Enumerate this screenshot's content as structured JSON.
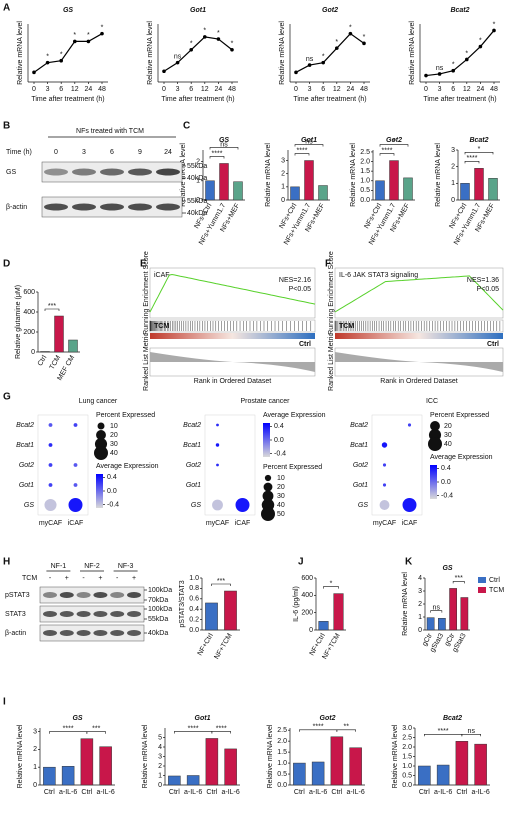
{
  "panel_labels": [
    "A",
    "B",
    "C",
    "D",
    "E",
    "F",
    "G",
    "H",
    "I",
    "J",
    "K"
  ],
  "chart_data": [
    {
      "type": "line",
      "title": "GS",
      "categories": [
        0,
        3,
        6,
        12,
        24,
        48
      ],
      "values": [
        1.0,
        1.5,
        1.6,
        2.6,
        2.6,
        3.0
      ],
      "sig": [
        null,
        "*",
        "*",
        "*",
        "*",
        "*"
      ],
      "color": "#000000",
      "ylim": [
        0.5,
        3.5
      ],
      "xlabel": "Time after treatment (h)",
      "ylabel": "Relative mRNA level"
    },
    {
      "type": "line",
      "title": "Got1",
      "categories": [
        0,
        3,
        6,
        12,
        24,
        48
      ],
      "values": [
        1.0,
        1.4,
        2.0,
        2.6,
        2.5,
        2.0
      ],
      "sig": [
        null,
        "ns",
        "*",
        "*",
        "*",
        "*"
      ],
      "color": "#000000",
      "ylim": [
        0.5,
        3.2
      ],
      "xlabel": "Time after treatment (h)",
      "ylabel": "Relative mRNA level"
    },
    {
      "type": "line",
      "title": "Got2",
      "categories": [
        0,
        3,
        6,
        12,
        24,
        48
      ],
      "values": [
        1.0,
        1.3,
        1.4,
        2.0,
        2.6,
        2.2
      ],
      "sig": [
        null,
        "ns",
        "*",
        "*",
        "*",
        "*"
      ],
      "color": "#000000",
      "ylim": [
        0.6,
        3.0
      ],
      "xlabel": "Time after treatment (h)",
      "ylabel": "Relative mRNA level"
    },
    {
      "type": "line",
      "title": "Bcat2",
      "categories": [
        0,
        3,
        6,
        12,
        24,
        48
      ],
      "values": [
        1.0,
        1.1,
        1.3,
        2.0,
        2.8,
        3.8
      ],
      "sig": [
        null,
        "ns",
        "*",
        "*",
        "*",
        "*"
      ],
      "color": "#000000",
      "ylim": [
        0.6,
        4.2
      ],
      "xlabel": "Time after treatment (h)",
      "ylabel": "Relative mRNA level"
    },
    {
      "type": "bar",
      "title": "GS",
      "categories": [
        "NFs+Ctrl",
        "NFs+Yumm1.7",
        "NFs+MEF"
      ],
      "values": [
        1.0,
        1.9,
        0.95
      ],
      "colors": [
        "#3a6fc4",
        "#c8174a",
        "#5aa48a"
      ],
      "ylim": [
        0,
        2.6
      ],
      "yticks": [
        0,
        1,
        2
      ],
      "ylabel": "Relative mRNA level",
      "sig": [
        {
          "from": 0,
          "to": 1,
          "label": "****"
        },
        {
          "from": 0,
          "to": 2,
          "label": "ns"
        }
      ]
    },
    {
      "type": "bar",
      "title": "Got1",
      "categories": [
        "NFs+Ctrl",
        "NFs+Yumm1.7",
        "NFs+MEF"
      ],
      "values": [
        1.0,
        3.0,
        1.1
      ],
      "colors": [
        "#3a6fc4",
        "#c8174a",
        "#5aa48a"
      ],
      "ylim": [
        0,
        3.8
      ],
      "yticks": [
        0,
        1,
        2,
        3
      ],
      "ylabel": "Relative mRNA level",
      "sig": [
        {
          "from": 0,
          "to": 1,
          "label": "****"
        },
        {
          "from": 0,
          "to": 2,
          "label": "ns"
        }
      ]
    },
    {
      "type": "bar",
      "title": "Got2",
      "categories": [
        "NFs+Ctrl",
        "NFs+Yumm1.7",
        "NFs+MEF"
      ],
      "values": [
        1.0,
        2.05,
        1.15
      ],
      "colors": [
        "#3a6fc4",
        "#c8174a",
        "#5aa48a"
      ],
      "ylim": [
        0,
        2.6
      ],
      "yticks": [
        {
          "value": 0,
          "label": "0.0"
        },
        0.5,
        {
          "value": 1,
          "label": "1.0"
        },
        1.5,
        {
          "value": 2,
          "label": "2.0"
        },
        2.5
      ],
      "ylabel": "Relative mRNA level",
      "sig": [
        {
          "from": 0,
          "to": 1,
          "label": "****"
        },
        {
          "from": 0,
          "to": 2,
          "label": "*"
        }
      ]
    },
    {
      "type": "bar",
      "title": "Bcat2",
      "categories": [
        "NFs+Ctrl",
        "NFs+Yumm1.7",
        "NFs+MEF"
      ],
      "values": [
        1.0,
        1.9,
        1.3
      ],
      "colors": [
        "#3a6fc4",
        "#c8174a",
        "#5aa48a"
      ],
      "ylim": [
        0,
        3
      ],
      "yticks": [
        0,
        1,
        2,
        3
      ],
      "ylabel": "Relative mRNA level",
      "sig": [
        {
          "from": 0,
          "to": 1,
          "label": "****"
        },
        {
          "from": 0,
          "to": 2,
          "label": "*"
        }
      ]
    },
    {
      "type": "bar",
      "categories": [
        "Ctrl",
        "TCM",
        "MEF CM"
      ],
      "values": [
        5,
        360,
        120
      ],
      "colors": [
        "#ffffff",
        "#c8174a",
        "#5aa48a"
      ],
      "ylim": [
        0,
        600
      ],
      "yticks": [
        0,
        200,
        400,
        600
      ],
      "ylabel": "Relative glutamine (μM)",
      "sig": [
        {
          "from": 0,
          "to": 1,
          "label": "***"
        }
      ]
    },
    {
      "type": "bar",
      "categories": [
        "NF+Ctrl",
        "NF+TCM"
      ],
      "values": [
        0.52,
        0.75
      ],
      "colors": [
        "#3a6fc4",
        "#c8174a"
      ],
      "ylim": [
        0,
        1
      ],
      "yticks": [
        {
          "value": 0,
          "label": "0.0"
        },
        0.2,
        0.4,
        0.6,
        0.8,
        {
          "value": 1,
          "label": "1.0"
        }
      ],
      "ylabel": "pSTAT3/STAT3",
      "sig": [
        {
          "from": 0,
          "to": 1,
          "label": "***"
        }
      ]
    },
    {
      "type": "bar",
      "categories": [
        "NF+Ctrl",
        "NF+TCM"
      ],
      "values": [
        100,
        420
      ],
      "colors": [
        "#3a6fc4",
        "#c8174a"
      ],
      "ylim": [
        0,
        600
      ],
      "yticks": [
        0,
        200,
        400,
        600
      ],
      "ylabel": "IL-6 (pg/ml)",
      "sig": [
        {
          "from": 0,
          "to": 1,
          "label": "*"
        }
      ]
    },
    {
      "type": "bar",
      "title": "GS",
      "categories": [
        "gCtr",
        "gStat3",
        "gCtr",
        "gStat3"
      ],
      "series": [
        {
          "name": "Ctrl",
          "color": "#3a6fc4",
          "values": [
            0.95,
            0.9,
            null,
            null
          ]
        },
        {
          "name": "TCM",
          "color": "#c8174a",
          "values": [
            null,
            null,
            3.2,
            2.5
          ]
        }
      ],
      "ylim": [
        0,
        4
      ],
      "yticks": [
        0,
        1,
        2,
        3,
        4
      ],
      "ylabel": "Relative mRNA level",
      "sig": [
        {
          "from": 0,
          "to": 1,
          "label": "ns"
        },
        {
          "from": 2,
          "to": 3,
          "label": "***"
        }
      ],
      "legend": "right"
    },
    {
      "type": "bar",
      "title": "GS",
      "categories": [
        "Ctrl",
        "a-IL-6",
        "Ctrl",
        "a-IL-6"
      ],
      "values": [
        1.0,
        1.05,
        2.6,
        2.15
      ],
      "colors": [
        "#3a6fc4",
        "#3a6fc4",
        "#c8174a",
        "#c8174a"
      ],
      "ylim": [
        0,
        3.2
      ],
      "yticks": [
        0,
        1,
        2,
        3
      ],
      "ylabel": "Relative mRNA level",
      "sig": [
        {
          "from": 0,
          "to": 2,
          "label": "****"
        },
        {
          "from": 2,
          "to": 3,
          "label": "***"
        }
      ]
    },
    {
      "type": "bar",
      "title": "Got1",
      "categories": [
        "Ctrl",
        "a-IL-6",
        "Ctrl",
        "a-IL-6"
      ],
      "values": [
        0.95,
        1.0,
        4.9,
        3.8
      ],
      "colors": [
        "#3a6fc4",
        "#3a6fc4",
        "#c8174a",
        "#c8174a"
      ],
      "ylim": [
        0,
        6
      ],
      "yticks": [
        0,
        1,
        2,
        3,
        4,
        5
      ],
      "ylabel": "Relative mRNA level",
      "sig": [
        {
          "from": 0,
          "to": 2,
          "label": "****"
        },
        {
          "from": 2,
          "to": 3,
          "label": "****"
        }
      ]
    },
    {
      "type": "bar",
      "title": "Got2",
      "categories": [
        "Ctrl",
        "a-IL-6",
        "Ctrl",
        "a-IL-6"
      ],
      "values": [
        1.0,
        1.05,
        2.2,
        1.7
      ],
      "colors": [
        "#3a6fc4",
        "#3a6fc4",
        "#c8174a",
        "#c8174a"
      ],
      "ylim": [
        0,
        2.6
      ],
      "yticks": [
        {
          "value": 0,
          "label": "0.0"
        },
        0.5,
        {
          "value": 1,
          "label": "1.0"
        },
        1.5,
        {
          "value": 2,
          "label": "2.0"
        },
        2.5
      ],
      "ylabel": "Relative mRNA level",
      "sig": [
        {
          "from": 0,
          "to": 2,
          "label": "****"
        },
        {
          "from": 2,
          "to": 3,
          "label": "**"
        }
      ]
    },
    {
      "type": "bar",
      "title": "Bcat2",
      "categories": [
        "Ctrl",
        "a-IL-6",
        "Ctrl",
        "a-IL-6"
      ],
      "values": [
        1.0,
        1.05,
        2.3,
        2.15
      ],
      "colors": [
        "#3a6fc4",
        "#3a6fc4",
        "#c8174a",
        "#c8174a"
      ],
      "ylim": [
        0,
        3
      ],
      "yticks": [
        {
          "value": 0,
          "label": "0.0"
        },
        0.5,
        {
          "value": 1,
          "label": "1.0"
        },
        1.5,
        {
          "value": 2,
          "label": "2.0"
        },
        2.5,
        {
          "value": 3,
          "label": "3.0"
        }
      ],
      "ylabel": "Relative mRNA level",
      "sig": [
        {
          "from": 0,
          "to": 2,
          "label": "****"
        },
        {
          "from": 2,
          "to": 3,
          "label": "ns"
        }
      ]
    },
    {
      "type": "dot",
      "title": "Lung cancer",
      "categories": [
        "myCAF",
        "iCAF"
      ],
      "genes": [
        "Bcat2",
        "Bcat1",
        "Got2",
        "Got1",
        "GS"
      ],
      "percent": [
        [
          3,
          3
        ],
        [
          3,
          null
        ],
        [
          3,
          3
        ],
        [
          3,
          3
        ],
        [
          30,
          40
        ]
      ],
      "average": [
        [
          0.1,
          0.2
        ],
        [
          0.3,
          null
        ],
        [
          0.2,
          0.1
        ],
        [
          0.2,
          0.1
        ],
        [
          -0.4,
          0.4
        ]
      ],
      "size_title": "Percent Expressed",
      "size_ticks": [
        10,
        20,
        30,
        40
      ],
      "color_title": "Average Expression",
      "color_ticks": [
        0.4,
        {
          "value": 0,
          "label": "0.0"
        },
        -0.4
      ],
      "clim": [
        -0.5,
        0.5
      ]
    },
    {
      "type": "dot",
      "title": "Prostate cancer",
      "categories": [
        "myCAF",
        "iCAF"
      ],
      "genes": [
        "Bcat2",
        "Bcat1",
        "Got2",
        "Got1",
        "GS"
      ],
      "percent": [
        [
          2,
          null
        ],
        [
          3,
          null
        ],
        [
          2,
          null
        ],
        [
          null,
          null
        ],
        [
          30,
          50
        ]
      ],
      "average": [
        [
          0.3,
          null
        ],
        [
          0.4,
          null
        ],
        [
          0.3,
          null
        ],
        [
          null,
          null
        ],
        [
          -0.4,
          0.4
        ]
      ],
      "size_title": "Percent Expressed",
      "size_ticks": [
        10,
        20,
        30,
        40,
        50
      ],
      "color_title": "Average Expression",
      "color_ticks": [
        0.4,
        {
          "value": 0,
          "label": "0.0"
        },
        -0.4
      ],
      "clim": [
        -0.5,
        0.5
      ]
    },
    {
      "type": "dot",
      "title": "ICC",
      "categories": [
        "myCAF",
        "iCAF"
      ],
      "genes": [
        "Bcat2",
        "Bcat1",
        "Got2",
        "Got1",
        "GS"
      ],
      "percent": [
        [
          null,
          2
        ],
        [
          6,
          null
        ],
        [
          2,
          null
        ],
        [
          2,
          null
        ],
        [
          20,
          40
        ]
      ],
      "average": [
        [
          null,
          0.2
        ],
        [
          0.4,
          null
        ],
        [
          0.2,
          null
        ],
        [
          0.2,
          null
        ],
        [
          -0.4,
          0.4
        ]
      ],
      "size_title": "Percent Expressed",
      "size_ticks": [
        20,
        30,
        40
      ],
      "color_title": "Average Expression",
      "color_ticks": [
        0.4,
        {
          "value": 0,
          "label": "0.0"
        },
        -0.4
      ],
      "clim": [
        -0.5,
        0.5
      ]
    }
  ],
  "gsea": [
    {
      "title": "iCAF",
      "nes": "NES=2.16",
      "p": "P<0.05",
      "high": "TCM",
      "low": "Ctrl",
      "ylabel_top": "Running Enrichment Score",
      "ylabel_bottom": "Ranked List Metric",
      "xlabel": "Rank in Ordered Dataset"
    },
    {
      "title": "IL-6 JAK STAT3 signaling",
      "nes": "NES=1.36",
      "p": "P<0.05",
      "high": "TCM",
      "low": "Ctrl",
      "ylabel_top": "Running Enrichment Score",
      "ylabel_bottom": "Ranked List Metric",
      "xlabel": "Rank in Ordered Dataset"
    }
  ],
  "blot_b": {
    "title": "NFs treated with TCM",
    "time_label": "Time (h)",
    "times": [
      "0",
      "3",
      "6",
      "9",
      "24"
    ],
    "bands": [
      {
        "name": "GS",
        "markers": [
          "55kDa",
          "40kDa"
        ]
      },
      {
        "name": "β-actin",
        "markers": [
          "55kDa",
          "40kDa"
        ]
      }
    ]
  },
  "blot_h": {
    "groups": [
      "NF-1",
      "NF-2",
      "NF-3"
    ],
    "treatment_label": "TCM",
    "treatment": [
      "-",
      "+",
      "-",
      "+",
      "-",
      "+"
    ],
    "bands": [
      {
        "name": "pSTAT3",
        "markers": [
          "100kDa",
          "70kDa"
        ]
      },
      {
        "name": "STAT3",
        "markers": [
          "100kDa",
          "55kDa"
        ]
      },
      {
        "name": "β-actin",
        "markers": [
          "40kDa"
        ]
      }
    ]
  }
}
